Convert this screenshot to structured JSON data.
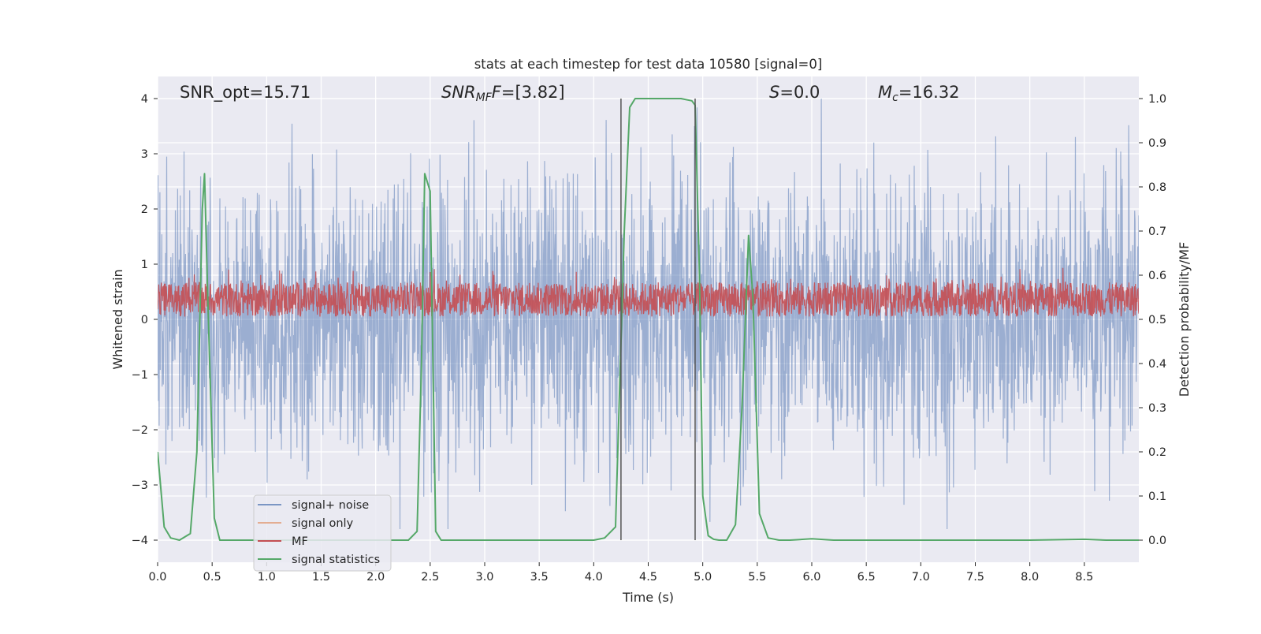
{
  "chart_data": {
    "type": "line",
    "title": "stats at each timestep for test data 10580 [signal=0]",
    "xlabel": "Time (s)",
    "ylabel": "Whitened strain",
    "y2label": "Detection probability/MF",
    "xlim": [
      0,
      9.0
    ],
    "ylim": [
      -4.4,
      4.4
    ],
    "y2lim": [
      -0.05,
      1.05
    ],
    "x_ticks": [
      "0.0",
      "0.5",
      "1.0",
      "1.5",
      "2.0",
      "2.5",
      "3.0",
      "3.5",
      "4.0",
      "4.5",
      "5.0",
      "5.5",
      "6.0",
      "6.5",
      "7.0",
      "7.5",
      "8.0",
      "8.5"
    ],
    "x_tick_values": [
      0,
      0.5,
      1.0,
      1.5,
      2.0,
      2.5,
      3.0,
      3.5,
      4.0,
      4.5,
      5.0,
      5.5,
      6.0,
      6.5,
      7.0,
      7.5,
      8.0,
      8.5
    ],
    "y_ticks": [
      "−4",
      "−3",
      "−2",
      "−1",
      "0",
      "1",
      "2",
      "3",
      "4"
    ],
    "y_tick_values": [
      -4,
      -3,
      -2,
      -1,
      0,
      1,
      2,
      3,
      4
    ],
    "y2_ticks": [
      "0.0",
      "0.1",
      "0.2",
      "0.3",
      "0.4",
      "0.5",
      "0.6",
      "0.7",
      "0.8",
      "0.9",
      "1.0"
    ],
    "y2_tick_values": [
      0,
      0.1,
      0.2,
      0.3,
      0.4,
      0.5,
      0.6,
      0.7,
      0.8,
      0.9,
      1.0
    ],
    "grid": true,
    "legend_placement": "lower-left",
    "annotations": {
      "snr_opt": "SNR_opt=15.71",
      "snr_mf_base": "SNR",
      "snr_mf_sub": "MF",
      "snr_mf_italic": "F",
      "snr_mf_value": "=[3.82]",
      "s_symbol": "S",
      "s_value": "=0.0",
      "mc_symbol": "M",
      "mc_sub": "c",
      "mc_value": "=16.32"
    },
    "vertical_markers": [
      4.25,
      4.93
    ],
    "series": [
      {
        "name": "signal+ noise",
        "color": "#4c72b0",
        "style": "dense noise band",
        "amplitude_envelope": [
          -3.8,
          4.0
        ]
      },
      {
        "name": "signal only",
        "color": "#dd8452",
        "values": []
      },
      {
        "name": "MF",
        "color": "#c44e52",
        "style": "dense band",
        "range": [
          0.05,
          1.0
        ]
      },
      {
        "name": "signal statistics",
        "color": "#55a868",
        "axis": "right",
        "x": [
          0.0,
          0.06,
          0.12,
          0.2,
          0.3,
          0.36,
          0.41,
          0.43,
          0.46,
          0.52,
          0.57,
          0.65,
          0.8,
          1.2,
          1.6,
          2.0,
          2.3,
          2.38,
          2.42,
          2.45,
          2.5,
          2.55,
          2.6,
          2.7,
          3.0,
          3.5,
          4.0,
          4.1,
          4.2,
          4.28,
          4.33,
          4.38,
          4.45,
          4.6,
          4.8,
          4.9,
          4.93,
          4.97,
          5.0,
          5.05,
          5.1,
          5.15,
          5.22,
          5.3,
          5.36,
          5.42,
          5.46,
          5.52,
          5.6,
          5.7,
          5.8,
          6.0,
          6.2,
          7.0,
          8.0,
          8.5,
          8.7,
          9.0
        ],
        "values": [
          0.2,
          0.03,
          0.005,
          0.0,
          0.015,
          0.2,
          0.75,
          0.83,
          0.55,
          0.05,
          0.0,
          0.0,
          0.0,
          0.0,
          0.0,
          0.0,
          0.0,
          0.02,
          0.4,
          0.83,
          0.79,
          0.02,
          0.0,
          0.0,
          0.0,
          0.0,
          0.0,
          0.005,
          0.03,
          0.7,
          0.98,
          1.0,
          1.0,
          1.0,
          1.0,
          0.995,
          0.985,
          0.6,
          0.1,
          0.01,
          0.002,
          0.0,
          0.0,
          0.035,
          0.3,
          0.69,
          0.55,
          0.06,
          0.005,
          0.0,
          0.0,
          0.003,
          0.0,
          0.0,
          0.0,
          0.002,
          0.0,
          0.0
        ]
      }
    ]
  }
}
